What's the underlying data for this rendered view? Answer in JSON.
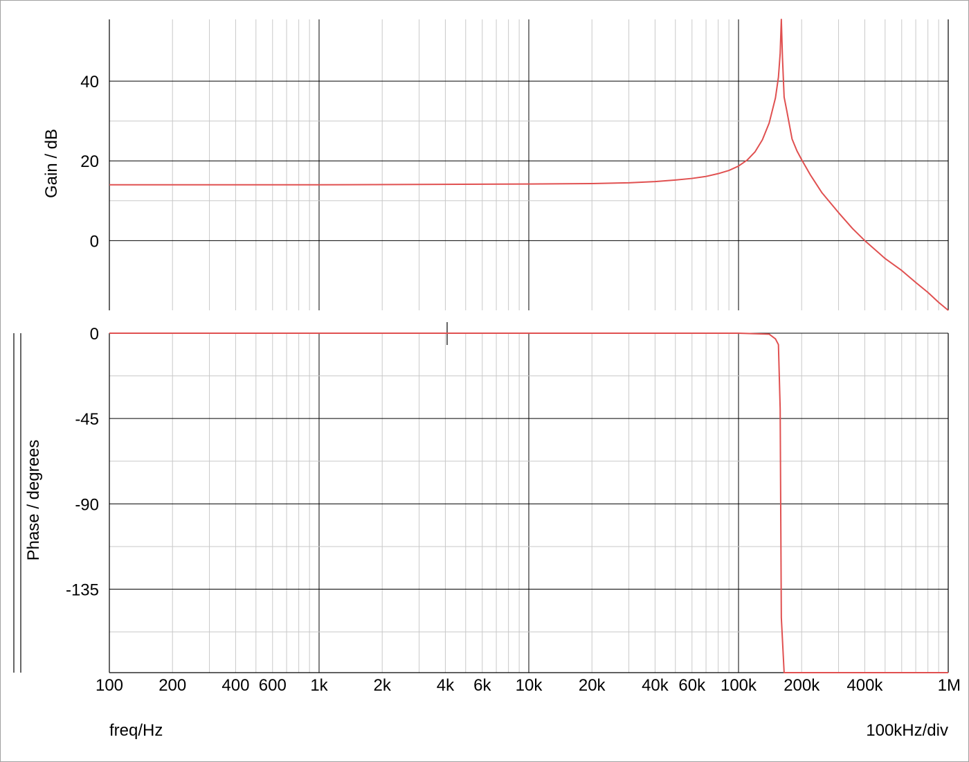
{
  "chart_data": [
    {
      "type": "line",
      "title": "",
      "ylabel": "Gain / dB",
      "xscale": "log",
      "xlim": [
        100,
        1000000
      ],
      "ylim": [
        -17.5,
        55.5
      ],
      "yticks": [
        0,
        20,
        40
      ],
      "grid": true,
      "line_color": "#e05050",
      "series": [
        {
          "x": [
            100,
            1000,
            10000,
            20000,
            30000,
            40000,
            50000,
            60000,
            70000,
            80000,
            90000,
            100000,
            110000,
            120000,
            130000,
            140000,
            150000,
            155000,
            158000,
            160000,
            162000,
            165000,
            170000,
            180000,
            190000,
            200000,
            220000,
            250000,
            300000,
            350000,
            400000,
            500000,
            600000,
            700000,
            800000,
            900000,
            1000000
          ],
          "y": [
            14,
            14,
            14.2,
            14.3,
            14.5,
            14.8,
            15.2,
            15.6,
            16.1,
            16.8,
            17.6,
            18.7,
            20.2,
            22.3,
            25.3,
            29.5,
            35.8,
            41,
            47,
            55.5,
            46,
            36,
            32.5,
            25.5,
            22.5,
            20.3,
            16.5,
            12,
            7,
            3,
            0,
            -4.5,
            -7.5,
            -10.5,
            -13,
            -15.5,
            -17.5
          ]
        }
      ]
    },
    {
      "type": "line",
      "title": "",
      "ylabel": "Phase / degrees",
      "xlabel": "freq/Hz",
      "xscale": "log",
      "xlim": [
        100,
        1000000
      ],
      "ylim": [
        -179,
        0
      ],
      "yticks": [
        0,
        -45,
        -90,
        -135
      ],
      "xticks": [
        100,
        200,
        400,
        600,
        1000,
        2000,
        4000,
        6000,
        10000,
        20000,
        40000,
        60000,
        100000,
        200000,
        400000,
        1000000
      ],
      "xtick_labels": [
        "100",
        "200",
        "400",
        "600",
        "1k",
        "2k",
        "4k",
        "6k",
        "10k",
        "20k",
        "40k",
        "60k",
        "100k",
        "200k",
        "400k",
        "1M"
      ],
      "grid": true,
      "line_color": "#e05050",
      "series": [
        {
          "x": [
            100,
            1000,
            10000,
            100000,
            140000,
            150000,
            155000,
            158000,
            160000,
            165000,
            170000,
            200000,
            300000,
            500000,
            1000000
          ],
          "y": [
            0,
            0,
            0,
            0,
            -0.5,
            -3,
            -6,
            -40,
            -150,
            -179,
            -179,
            -179,
            -179,
            -179,
            -179
          ]
        }
      ]
    }
  ],
  "corner_label": "100kHz/div"
}
